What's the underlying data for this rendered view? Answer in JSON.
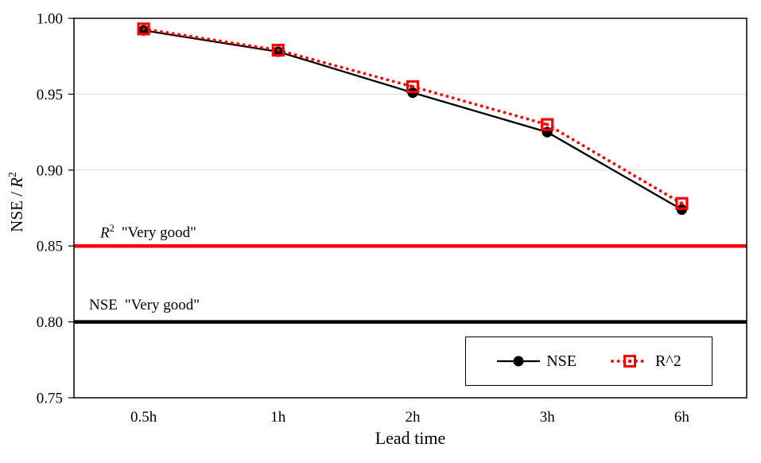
{
  "chart_data": {
    "type": "line",
    "title": "",
    "xlabel": "Lead time",
    "ylabel": "NSE / R^2",
    "categories": [
      "0.5h",
      "1h",
      "2h",
      "3h",
      "6h"
    ],
    "series": [
      {
        "name": "NSE",
        "color": "#000000",
        "line_style": "solid",
        "marker": "filled-circle",
        "values": [
          0.992,
          0.978,
          0.951,
          0.925,
          0.874
        ]
      },
      {
        "name": "R^2",
        "color": "#ff0000",
        "line_style": "dotted",
        "marker": "open-square",
        "values": [
          0.993,
          0.979,
          0.955,
          0.93,
          0.878
        ]
      }
    ],
    "ylim": [
      0.75,
      1.0
    ],
    "ytick_labels": [
      "1.00",
      "0.95",
      "0.90",
      "0.85",
      "0.80",
      "0.75"
    ],
    "grid": "horizontal-light-gray",
    "legend_position": "inside-bottom-right",
    "reference_lines": [
      {
        "value": 0.85,
        "color": "#ff0000",
        "label": "R²  \"Very good\""
      },
      {
        "value": 0.8,
        "color": "#000000",
        "label": "NSE  \"Very good\""
      }
    ]
  },
  "axes": {
    "x_title": "Lead time",
    "y_title_prefix": "NSE / ",
    "y_title_r": "R",
    "y_title_sup": "2"
  },
  "annotations": {
    "r2_prefix": "R",
    "r2_sup": "2",
    "r2_text": "\"Very good\"",
    "nse_prefix": "NSE",
    "nse_text": "\"Very good\""
  },
  "legend": {
    "nse_label": "NSE",
    "r2_label": "R^2"
  },
  "colors": {
    "nse": "#000000",
    "r2": "#ff0000",
    "grid": "#d9d9d9",
    "axis": "#000000"
  }
}
